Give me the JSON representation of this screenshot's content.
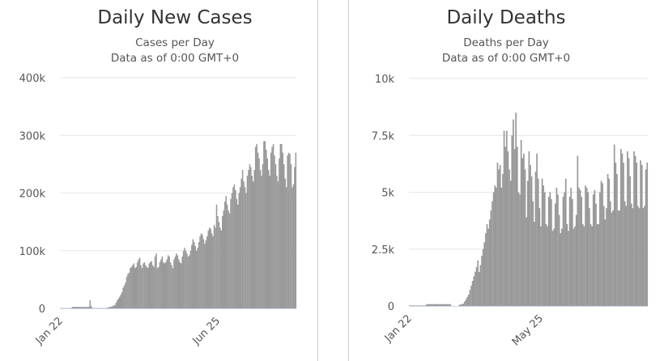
{
  "chart_data": [
    {
      "type": "bar",
      "title": "Daily New Cases",
      "subtitle": "Cases per Day",
      "subtitle2": "Data as of 0:00 GMT+0",
      "xlabel": "",
      "ylabel": "",
      "ylim": [
        0,
        400000
      ],
      "y_ticks": [
        {
          "value": 0,
          "label": "0"
        },
        {
          "value": 100000,
          "label": "100k"
        },
        {
          "value": 200000,
          "label": "200k"
        },
        {
          "value": 300000,
          "label": "300k"
        },
        {
          "value": 400000,
          "label": "400k"
        }
      ],
      "x_ticks": [
        {
          "label": "Jan 22",
          "index": 0
        },
        {
          "label": "Jun 25",
          "index": 133
        }
      ],
      "grid": true,
      "bar_color": "#999999",
      "values": [
        500,
        500,
        500,
        500,
        500,
        500,
        500,
        500,
        500,
        500,
        2500,
        2500,
        2500,
        2500,
        2500,
        2500,
        2500,
        2500,
        2500,
        2500,
        2500,
        2500,
        2500,
        2500,
        2500,
        14000,
        4000,
        500,
        500,
        500,
        500,
        500,
        500,
        500,
        500,
        500,
        500,
        500,
        500,
        500,
        1500,
        2000,
        2500,
        3000,
        4000,
        5000,
        6000,
        10000,
        14000,
        17000,
        20000,
        24000,
        28000,
        36000,
        40000,
        45000,
        55000,
        60000,
        62000,
        70000,
        72000,
        75000,
        78000,
        70000,
        72000,
        80000,
        85000,
        88000,
        75000,
        70000,
        78000,
        80000,
        75000,
        72000,
        70000,
        78000,
        80000,
        82000,
        75000,
        72000,
        90000,
        95000,
        70000,
        72000,
        80000,
        85000,
        90000,
        80000,
        78000,
        80000,
        85000,
        92000,
        90000,
        80000,
        75000,
        70000,
        85000,
        90000,
        95000,
        92000,
        85000,
        80000,
        78000,
        90000,
        100000,
        105000,
        100000,
        95000,
        90000,
        92000,
        100000,
        110000,
        120000,
        115000,
        108000,
        100000,
        105000,
        115000,
        125000,
        130000,
        128000,
        120000,
        112000,
        118000,
        125000,
        135000,
        140000,
        138000,
        130000,
        125000,
        145000,
        140000,
        180000,
        160000,
        150000,
        140000,
        135000,
        160000,
        170000,
        185000,
        195000,
        180000,
        170000,
        165000,
        190000,
        200000,
        210000,
        215000,
        205000,
        190000,
        180000,
        200000,
        210000,
        225000,
        240000,
        220000,
        210000,
        200000,
        230000,
        240000,
        250000,
        245000,
        230000,
        220000,
        240000,
        280000,
        285000,
        270000,
        260000,
        240000,
        230000,
        250000,
        290000,
        290000,
        275000,
        260000,
        240000,
        230000,
        270000,
        280000,
        285000,
        265000,
        250000,
        230000,
        220000,
        260000,
        285000,
        285000,
        270000,
        250000,
        225000,
        210000,
        265000,
        270000,
        268000,
        250000,
        210000,
        215000,
        245000,
        270000
      ]
    },
    {
      "type": "bar",
      "title": "Daily Deaths",
      "subtitle": "Deaths per Day",
      "subtitle2": "Data as of 0:00 GMT+0",
      "xlabel": "",
      "ylabel": "",
      "ylim": [
        0,
        10000
      ],
      "y_ticks": [
        {
          "value": 0,
          "label": "0"
        },
        {
          "value": 2500,
          "label": "2.5k"
        },
        {
          "value": 5000,
          "label": "5k"
        },
        {
          "value": 7500,
          "label": "7.5k"
        },
        {
          "value": 10000,
          "label": "10k"
        }
      ],
      "x_ticks": [
        {
          "label": "Jan 22",
          "index": 0
        },
        {
          "label": "May 25",
          "index": 100
        }
      ],
      "grid": true,
      "bar_color": "#999999",
      "values": [
        20,
        20,
        20,
        20,
        20,
        20,
        20,
        20,
        20,
        20,
        20,
        20,
        20,
        80,
        80,
        80,
        80,
        80,
        80,
        80,
        80,
        80,
        80,
        80,
        80,
        80,
        80,
        80,
        80,
        80,
        80,
        80,
        0,
        0,
        0,
        0,
        0,
        0,
        60,
        60,
        80,
        100,
        200,
        300,
        400,
        500,
        700,
        900,
        1100,
        1300,
        1500,
        1700,
        2000,
        1500,
        1800,
        2200,
        2500,
        2800,
        3200,
        3600,
        3400,
        3800,
        4200,
        4600,
        5000,
        5300,
        5200,
        6300,
        6000,
        6200,
        5200,
        5800,
        7700,
        7000,
        7700,
        6800,
        6000,
        5500,
        7500,
        8200,
        6900,
        8500,
        7000,
        5000,
        4900,
        7300,
        6500,
        6700,
        6000,
        3900,
        5500,
        6800,
        6200,
        5700,
        4600,
        3700,
        5900,
        6700,
        5600,
        4300,
        3500,
        5600,
        5300,
        5000,
        3600,
        3500,
        4800,
        5000,
        4700,
        3300,
        3400,
        4500,
        5200,
        4900,
        4000,
        3200,
        3400,
        4800,
        5000,
        5600,
        3600,
        3300,
        4800,
        5200,
        4700,
        3400,
        3500,
        4000,
        6600,
        5200,
        5100,
        4800,
        3600,
        3500,
        5300,
        5200,
        5000,
        4300,
        3600,
        3500,
        4900,
        5100,
        4500,
        3600,
        3600,
        5000,
        5500,
        5400,
        4400,
        3800,
        4300,
        5800,
        5600,
        4600,
        4100,
        4200,
        7100,
        6300,
        5800,
        4200,
        4200,
        6900,
        6700,
        6300,
        4600,
        4400,
        6800,
        6500,
        5700,
        4500,
        4300,
        6800,
        6600,
        6300,
        4400,
        4300,
        6400,
        6200,
        4300,
        4400,
        6000,
        6300
      ]
    }
  ],
  "colors": {
    "bars": "#999999",
    "grid": "#e6e6e6",
    "axis": "#ccd6eb"
  }
}
